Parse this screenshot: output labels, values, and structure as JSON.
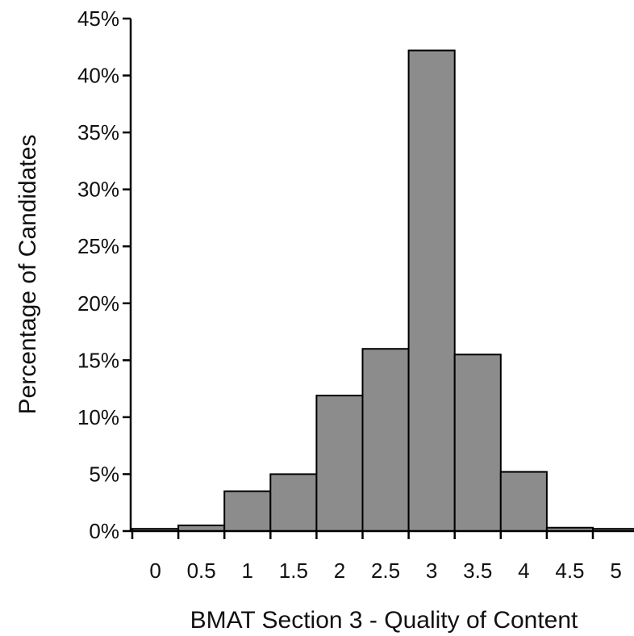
{
  "chart_data": {
    "type": "bar",
    "title": "",
    "xlabel": "BMAT Section 3 - Quality of Content",
    "ylabel": "Percentage of Candidates",
    "categories": [
      "0",
      "0.5",
      "1",
      "1.5",
      "2",
      "2.5",
      "3",
      "3.5",
      "4",
      "4.5",
      "5"
    ],
    "values": [
      0.2,
      0.5,
      3.5,
      5.0,
      11.9,
      16.0,
      42.2,
      15.5,
      5.2,
      0.3,
      0.2
    ],
    "ylim": [
      0,
      45
    ],
    "yticks": [
      0,
      5,
      10,
      15,
      20,
      25,
      30,
      35,
      40,
      45
    ],
    "ytick_labels": [
      "0%",
      "5%",
      "10%",
      "15%",
      "20%",
      "25%",
      "30%",
      "35%",
      "40%",
      "45%"
    ],
    "grid": false,
    "legend": "none",
    "bar_color": "#8c8c8c"
  }
}
